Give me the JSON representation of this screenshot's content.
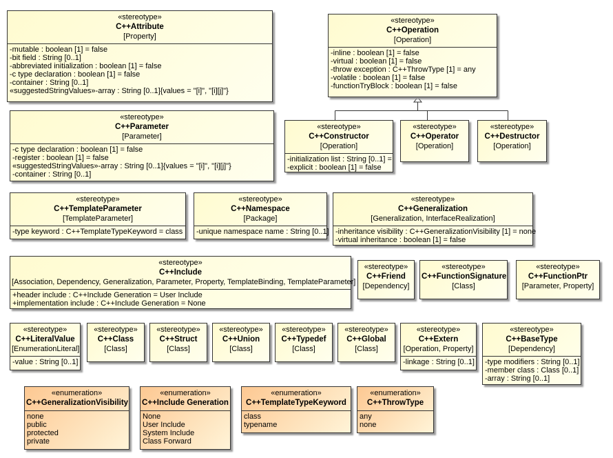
{
  "boxes": [
    {
      "kind": "stereotype",
      "stereotype": "«stereotype»",
      "name": "C++Attribute",
      "meta": "[Property]",
      "attrs": [
        "-mutable : boolean [1] = false",
        "-bit field : String [0..1]",
        "-abbreviated initialization : boolean [1] = false",
        "-c type declaration : boolean [1] = false",
        "-container : String [0..1]",
        "«suggestedStringValues»-array : String [0..1]{values = \"[i]\", \"[i][j]\"}"
      ]
    },
    {
      "kind": "stereotype",
      "stereotype": "«stereotype»",
      "name": "C++Operation",
      "meta": "[Operation]",
      "attrs": [
        "-inline : boolean [1] = false",
        "-virtual : boolean [1] = false",
        "-throw exception : C++ThrowType [1] = any",
        "-volatile : boolean [1] = false",
        "-functionTryBlock : boolean [1] = false"
      ]
    },
    {
      "kind": "stereotype",
      "stereotype": "«stereotype»",
      "name": "C++Parameter",
      "meta": "[Parameter]",
      "attrs": [
        "-c type declaration : boolean [1] = false",
        "-register : boolean [1] = false",
        "«suggestedStringValues»-array : String [0..1]{values = \"[i]\", \"[i][j]\"}",
        "-container : String [0..1]"
      ]
    },
    {
      "kind": "stereotype",
      "stereotype": "«stereotype»",
      "name": "C++Constructor",
      "meta": "[Operation]",
      "attrs": [
        "-initialization list : String [0..1] =",
        "-explicit : boolean [1] = false"
      ]
    },
    {
      "kind": "stereotype",
      "stereotype": "«stereotype»",
      "name": "C++Operator",
      "meta": "[Operation]",
      "attrs": []
    },
    {
      "kind": "stereotype",
      "stereotype": "«stereotype»",
      "name": "C++Destructor",
      "meta": "[Operation]",
      "attrs": []
    },
    {
      "kind": "stereotype",
      "stereotype": "«stereotype»",
      "name": "C++TemplateParameter",
      "meta": "[TemplateParameter]",
      "attrs": [
        "-type keyword : C++TemplateTypeKeyword = class"
      ]
    },
    {
      "kind": "stereotype",
      "stereotype": "«stereotype»",
      "name": "C++Namespace",
      "meta": "[Package]",
      "attrs": [
        "-unique namespace name : String [0..1]"
      ]
    },
    {
      "kind": "stereotype",
      "stereotype": "«stereotype»",
      "name": "C++Generalization",
      "meta": "[Generalization, InterfaceRealization]",
      "attrs": [
        "-inheritance visibility : C++GeneralizationVisibility [1] = none",
        "-virtual inheritance : boolean [1] = false"
      ]
    },
    {
      "kind": "stereotype",
      "stereotype": "«stereotype»",
      "name": "C++Include",
      "meta": "[Association, Dependency, Generalization, Parameter, Property, TemplateBinding, TemplateParameter]",
      "attrs": [
        "+header include : C++Include Generation = User Include",
        "+implementation include : C++Include Generation = None"
      ]
    },
    {
      "kind": "stereotype",
      "stereotype": "«stereotype»",
      "name": "C++Friend",
      "meta": "[Dependency]",
      "attrs": []
    },
    {
      "kind": "stereotype",
      "stereotype": "«stereotype»",
      "name": "C++FunctionSignature",
      "meta": "[Class]",
      "attrs": []
    },
    {
      "kind": "stereotype",
      "stereotype": "«stereotype»",
      "name": "C++FunctionPtr",
      "meta": "[Parameter, Property]",
      "attrs": []
    },
    {
      "kind": "stereotype",
      "stereotype": "«stereotype»",
      "name": "C++LiteralValue",
      "meta": "[EnumerationLiteral]",
      "attrs": [
        "-value : String [0..1]"
      ]
    },
    {
      "kind": "stereotype",
      "stereotype": "«stereotype»",
      "name": "C++Class",
      "meta": "[Class]",
      "attrs": []
    },
    {
      "kind": "stereotype",
      "stereotype": "«stereotype»",
      "name": "C++Struct",
      "meta": "[Class]",
      "attrs": []
    },
    {
      "kind": "stereotype",
      "stereotype": "«stereotype»",
      "name": "C++Union",
      "meta": "[Class]",
      "attrs": []
    },
    {
      "kind": "stereotype",
      "stereotype": "«stereotype»",
      "name": "C++Typedef",
      "meta": "[Class]",
      "attrs": []
    },
    {
      "kind": "stereotype",
      "stereotype": "«stereotype»",
      "name": "C++Global",
      "meta": "[Class]",
      "attrs": []
    },
    {
      "kind": "stereotype",
      "stereotype": "«stereotype»",
      "name": "C++Extern",
      "meta": "[Operation, Property]",
      "attrs": [
        "-linkage : String [0..1]"
      ]
    },
    {
      "kind": "stereotype",
      "stereotype": "«stereotype»",
      "name": "C++BaseType",
      "meta": "[Dependency]",
      "attrs": [
        "-type modifiers : String [0..1]",
        "-member class : Class [0..1]",
        "-array : String [0..1]"
      ]
    },
    {
      "kind": "enum",
      "stereotype": "«enumeration»",
      "name": "C++GeneralizationVisibility",
      "attrs": [
        "none",
        "public",
        "protected",
        "private"
      ]
    },
    {
      "kind": "enum",
      "stereotype": "«enumeration»",
      "name": "C++Include Generation",
      "attrs": [
        "None",
        "User Include",
        "System Include",
        "Class Forward"
      ]
    },
    {
      "kind": "enum",
      "stereotype": "«enumeration»",
      "name": "C++TemplateTypeKeyword",
      "attrs": [
        "class",
        "typename"
      ]
    },
    {
      "kind": "enum",
      "stereotype": "«enumeration»",
      "name": "C++ThrowType",
      "attrs": [
        "any",
        "none"
      ]
    }
  ],
  "colors": {
    "stereotype_fill": "#fffbd0",
    "enumeration_fill": "#fdc892",
    "border": "#333333"
  }
}
